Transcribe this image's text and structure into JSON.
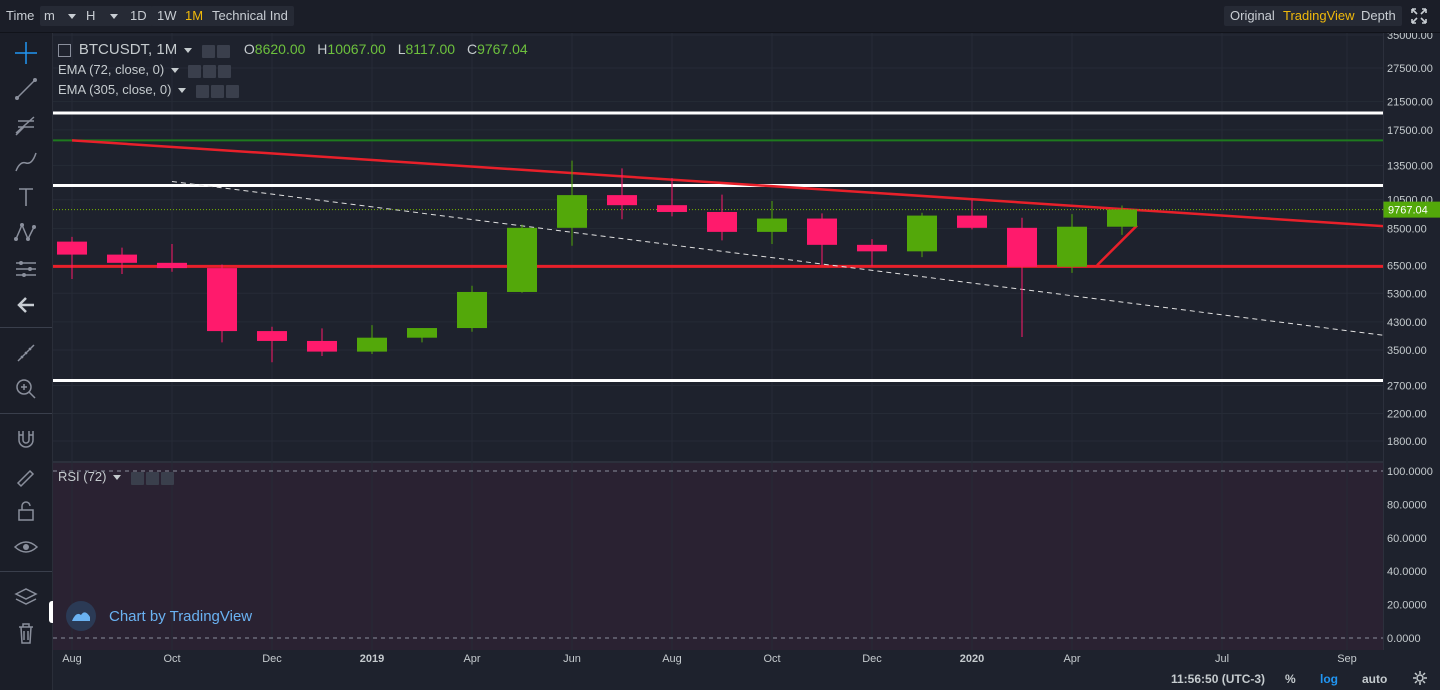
{
  "toolbar": {
    "time_label": "Time",
    "minute_select": "m",
    "hour_select": "H",
    "btn_1d": "1D",
    "btn_1w": "1W",
    "btn_1m": "1M",
    "technical_ind": "Technical Ind",
    "original": "Original",
    "tradingview": "TradingView",
    "depth": "Depth"
  },
  "legend": {
    "symbol": "BTCUSDT, 1M",
    "o_label": "O",
    "o_value": "8620.00",
    "h_label": "H",
    "h_value": "10067.00",
    "l_label": "L",
    "l_value": "8117.00",
    "c_label": "C",
    "c_value": "9767.04",
    "ema1": "EMA (72, close, 0)",
    "ema2": "EMA (305, close, 0)",
    "rsi": "RSI (72)"
  },
  "watermark": "Chart by TradingView",
  "bottom": {
    "time": "11:56:50 (UTC-3)",
    "percent": "%",
    "log": "log",
    "auto": "auto"
  },
  "colors": {
    "up": "#53b987",
    "up_candle": "#53a80a",
    "down_candle": "#ff1a6c",
    "red_line": "#e8202a",
    "green_line": "#1e7a1e",
    "white_line": "#ffffff",
    "accent": "#f0b90b",
    "rsi_bg": "#2a2232"
  },
  "chart_data": {
    "type": "candlestick",
    "scale": "log",
    "ylim": [
      1700,
      35000
    ],
    "y_ticks": [
      "35000.00",
      "27500.00",
      "21500.00",
      "17500.00",
      "13500.00",
      "10500.00",
      "8500.00",
      "6500.00",
      "5300.00",
      "4300.00",
      "3500.00",
      "2700.00",
      "2200.00",
      "1800.00"
    ],
    "x_ticks": [
      "Aug",
      "Oct",
      "Dec",
      "2019",
      "Apr",
      "Jun",
      "Aug",
      "Oct",
      "Dec",
      "2020",
      "Apr",
      "Jul",
      "Sep"
    ],
    "last_price_label": "9767.04",
    "candles": [
      {
        "o": 7730,
        "h": 8000,
        "l": 5880,
        "c": 7030
      },
      {
        "o": 7030,
        "h": 7400,
        "l": 6100,
        "c": 6620
      },
      {
        "o": 6620,
        "h": 7600,
        "l": 6200,
        "c": 6370
      },
      {
        "o": 6370,
        "h": 6540,
        "l": 3700,
        "c": 4020
      },
      {
        "o": 4020,
        "h": 4150,
        "l": 3200,
        "c": 3740
      },
      {
        "o": 3740,
        "h": 4100,
        "l": 3350,
        "c": 3460
      },
      {
        "o": 3460,
        "h": 4200,
        "l": 3400,
        "c": 3830
      },
      {
        "o": 3830,
        "h": 4100,
        "l": 3700,
        "c": 4110
      },
      {
        "o": 4110,
        "h": 5600,
        "l": 4000,
        "c": 5350
      },
      {
        "o": 5350,
        "h": 8750,
        "l": 5320,
        "c": 8550
      },
      {
        "o": 8550,
        "h": 13970,
        "l": 7500,
        "c": 10860
      },
      {
        "o": 10860,
        "h": 13200,
        "l": 9100,
        "c": 10090
      },
      {
        "o": 10090,
        "h": 12300,
        "l": 9300,
        "c": 9600
      },
      {
        "o": 9600,
        "h": 10900,
        "l": 7800,
        "c": 8300
      },
      {
        "o": 8300,
        "h": 10400,
        "l": 7600,
        "c": 9150
      },
      {
        "o": 9150,
        "h": 9500,
        "l": 6500,
        "c": 7550
      },
      {
        "o": 7550,
        "h": 7870,
        "l": 6450,
        "c": 7200
      },
      {
        "o": 7200,
        "h": 9550,
        "l": 6900,
        "c": 9350
      },
      {
        "o": 9350,
        "h": 10500,
        "l": 8450,
        "c": 8550
      },
      {
        "o": 8550,
        "h": 9200,
        "l": 3850,
        "c": 6430
      },
      {
        "o": 6430,
        "h": 9450,
        "l": 6150,
        "c": 8620
      },
      {
        "o": 8620,
        "h": 10067,
        "l": 8117,
        "c": 9767.04
      }
    ],
    "horizontal_lines": [
      {
        "price": 19800,
        "color": "white"
      },
      {
        "price": 16200,
        "color": "green"
      },
      {
        "price": 11650,
        "color": "white"
      },
      {
        "price": 6450,
        "color": "red"
      },
      {
        "price": 2800,
        "color": "white"
      }
    ],
    "trendlines": [
      {
        "from": [
          0,
          16200
        ],
        "to": [
          26.5,
          8600
        ],
        "color": "red",
        "style": "solid"
      },
      {
        "from": [
          2,
          12000
        ],
        "to": [
          26.5,
          3850
        ],
        "color": "white",
        "style": "dashed"
      },
      {
        "from": [
          20.5,
          6500
        ],
        "to": [
          21.3,
          8700
        ],
        "color": "red",
        "style": "solid"
      }
    ],
    "rsi": {
      "ylim": [
        0,
        100
      ],
      "ticks": [
        "100.0000",
        "80.0000",
        "60.0000",
        "40.0000",
        "20.0000",
        "0.0000"
      ]
    }
  }
}
